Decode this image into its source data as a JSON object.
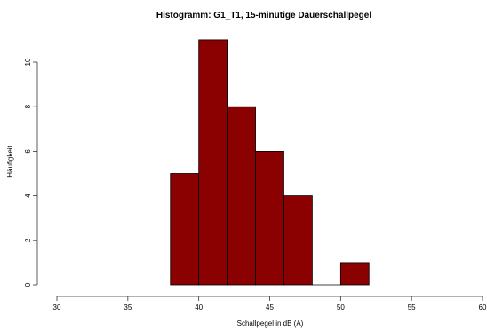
{
  "chart_data": {
    "type": "bar",
    "title": "Histogramm: G1_T1, 15-minütige Dauerschallpegel",
    "xlabel": "Schallpegel in dB (A)",
    "ylabel": "Häufigkeit",
    "bin_edges": [
      38,
      40,
      42,
      44,
      46,
      48,
      50,
      52
    ],
    "values": [
      5,
      11,
      8,
      6,
      4,
      0,
      1
    ],
    "xlim": [
      30,
      60
    ],
    "ylim": [
      0,
      11
    ],
    "x_ticks": [
      "30",
      "35",
      "40",
      "45",
      "50",
      "55",
      "60"
    ],
    "y_ticks": [
      "0",
      "2",
      "4",
      "6",
      "8",
      "10"
    ],
    "bar_color": "#8b0000",
    "grid": false,
    "legend": "none"
  }
}
